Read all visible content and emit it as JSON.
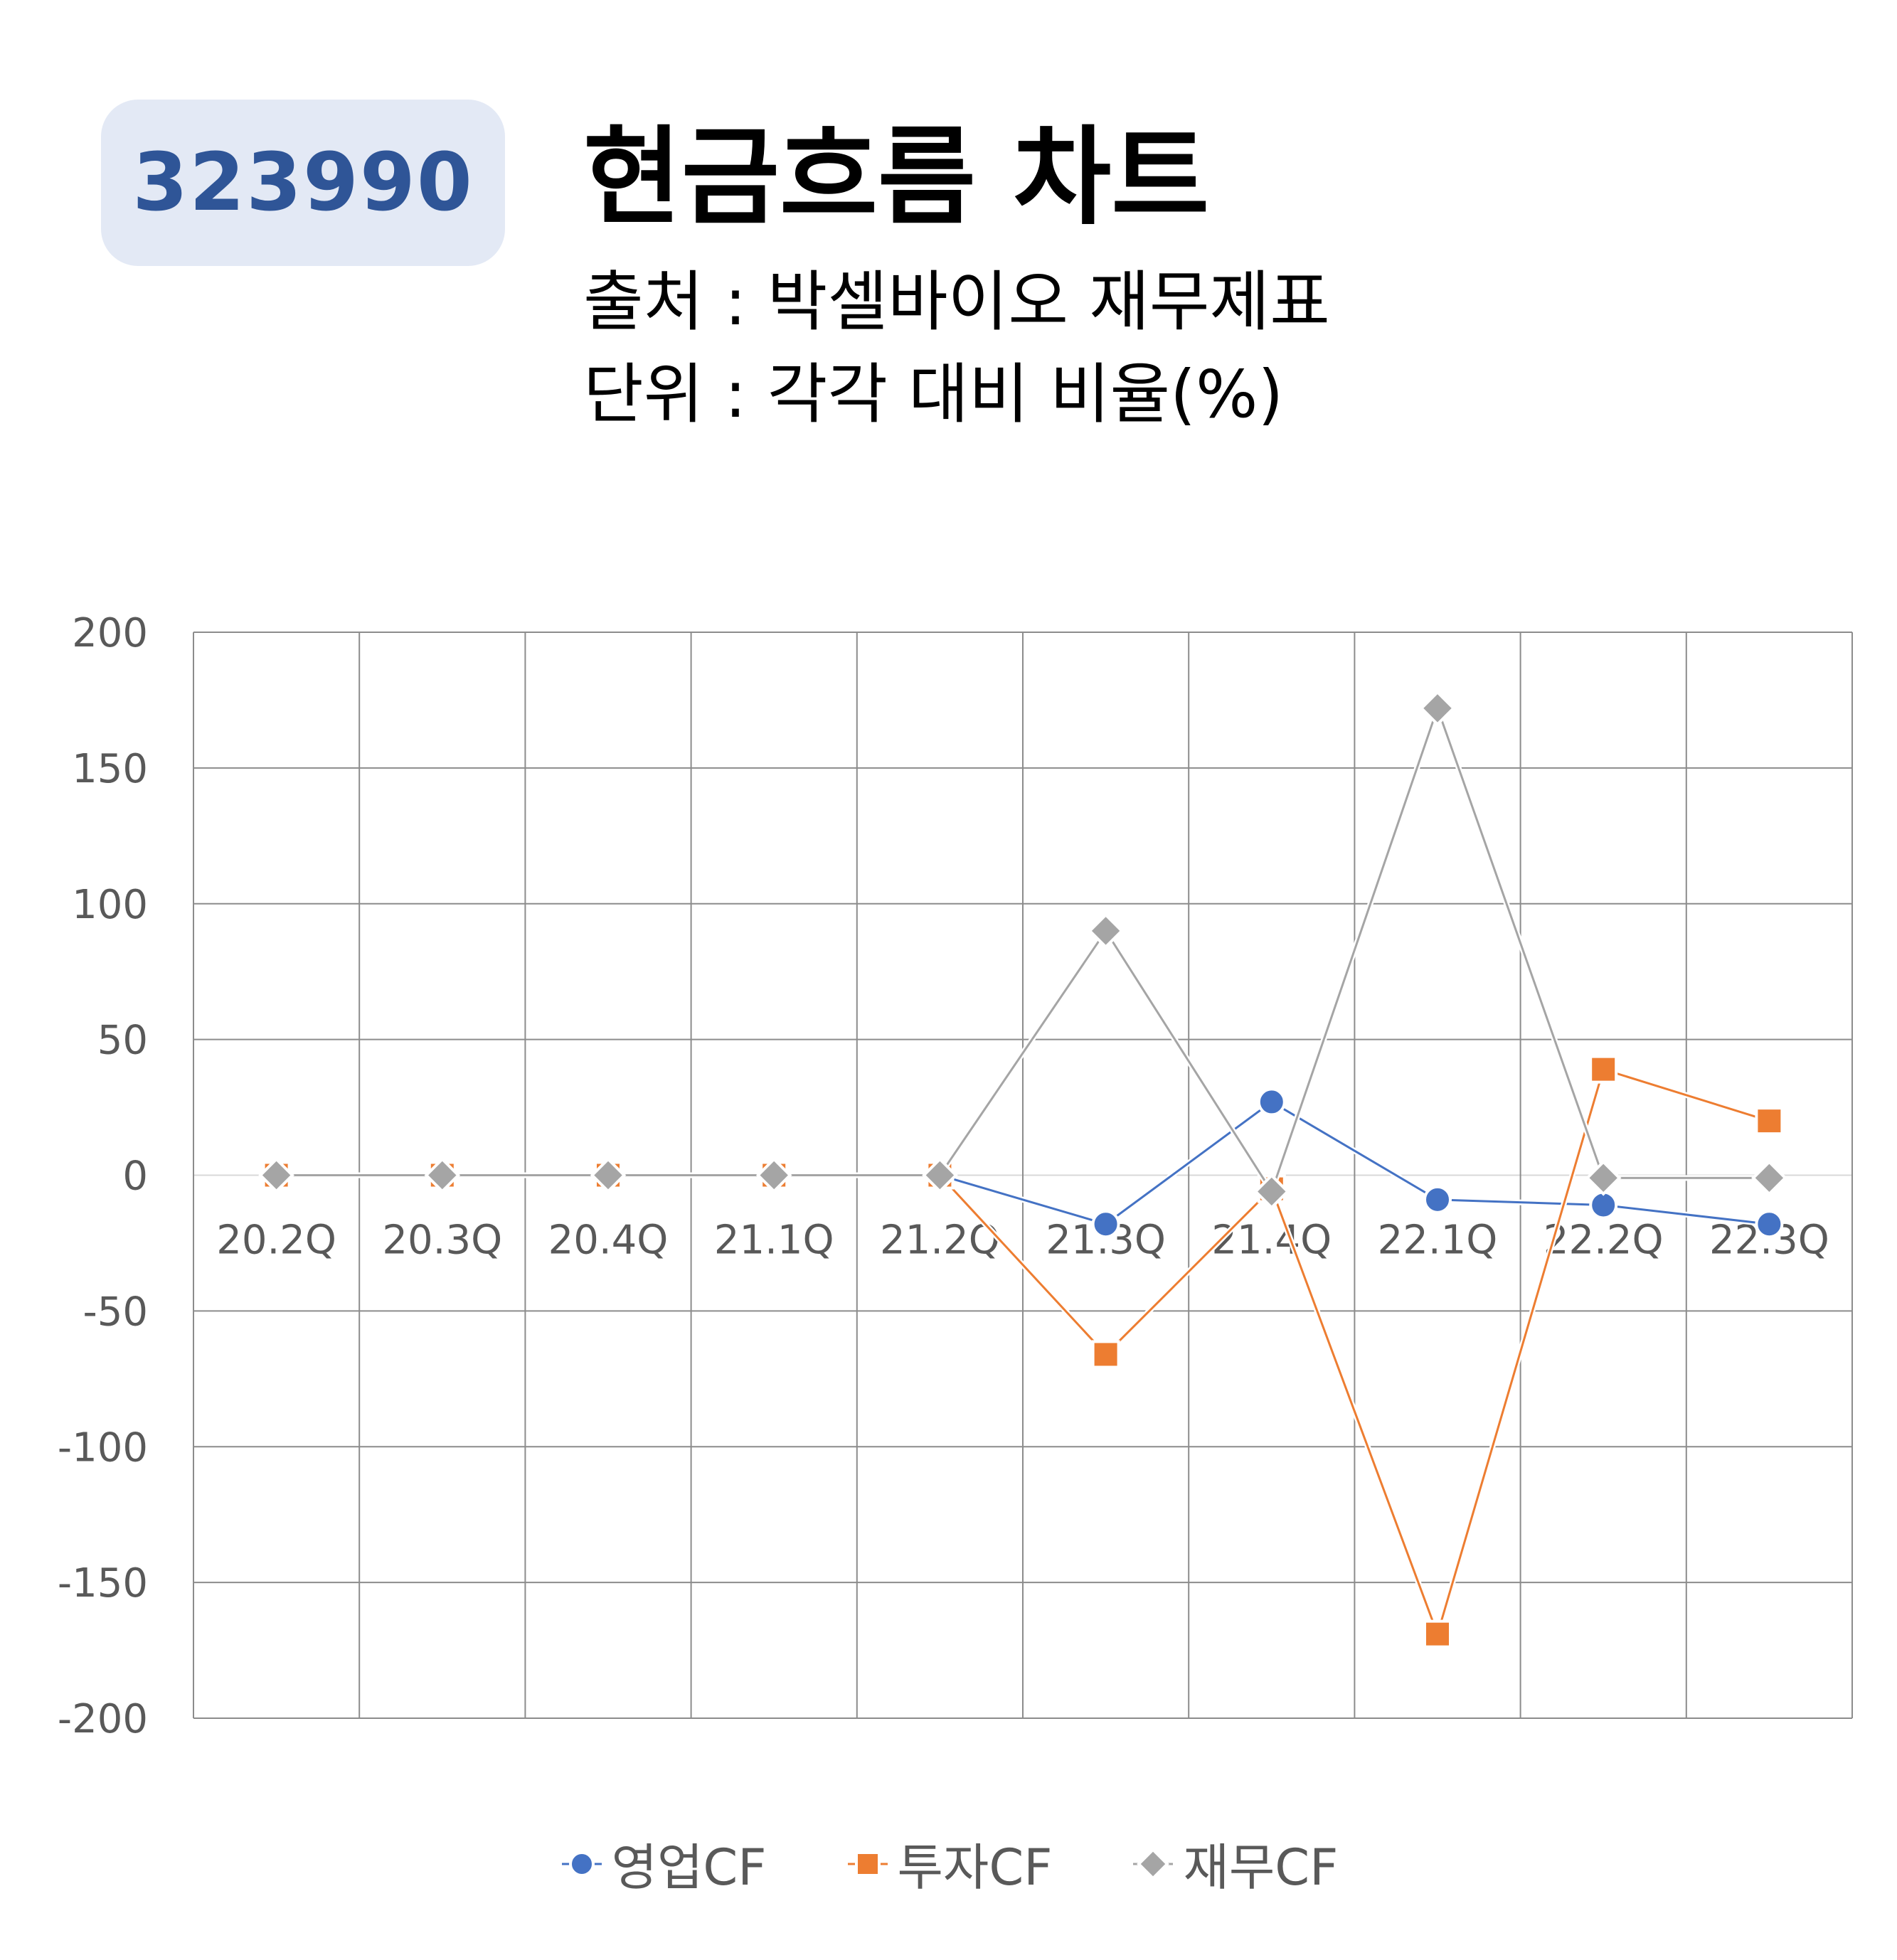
{
  "header": {
    "code": "323990",
    "title": "현금흐름 차트",
    "source_line": "출처 : 박셀바이오 재무제표",
    "unit_line": "단위 : 각각 대비 비율(%)"
  },
  "chart_data": {
    "type": "line",
    "categories": [
      "20.2Q",
      "20.3Q",
      "20.4Q",
      "21.1Q",
      "21.2Q",
      "21.3Q",
      "21.4Q",
      "22.1Q",
      "22.2Q",
      "22.3Q"
    ],
    "series": [
      {
        "name": "영업CF",
        "marker": "circle",
        "color": "#4472c4",
        "values": [
          0,
          0,
          0,
          0,
          0,
          -18,
          27,
          -9,
          -11,
          -18
        ]
      },
      {
        "name": "투자CF",
        "marker": "square",
        "color": "#ed7d31",
        "values": [
          0,
          0,
          0,
          0,
          0,
          -66,
          -5,
          -169,
          39,
          20
        ]
      },
      {
        "name": "재무CF",
        "marker": "diamond",
        "color": "#a5a5a5",
        "values": [
          0,
          0,
          0,
          0,
          0,
          90,
          -6,
          172,
          -1,
          -1
        ]
      }
    ],
    "ylim": [
      -200,
      200
    ],
    "yticks": [
      "200",
      "150",
      "100",
      "50",
      "0",
      "-50",
      "-100",
      "-150",
      "-200"
    ],
    "grid": true,
    "legend_position": "bottom",
    "xlabel": "",
    "ylabel": ""
  }
}
